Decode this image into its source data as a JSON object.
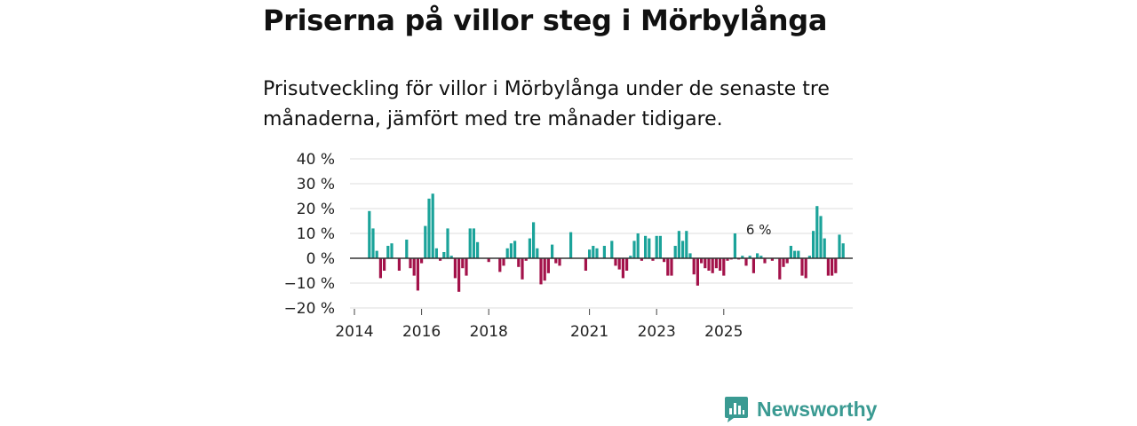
{
  "header": {
    "title": "Priserna på villor steg i Mörbylånga",
    "subtitle": "Prisutveckling för villor i Mörbylånga under de senaste tre månaderna, jämfört med tre månader tidigare."
  },
  "brand": {
    "name": "Newsworthy"
  },
  "colors": {
    "positive": "#1ba39a",
    "negative": "#a3124a",
    "brand": "#3a9a92"
  },
  "chart_data": {
    "type": "bar",
    "title": "Priserna på villor steg i Mörbylånga",
    "xlabel": "",
    "ylabel": "",
    "ylim": [
      -20,
      40
    ],
    "yticks": [
      -20,
      -10,
      0,
      10,
      20,
      30,
      40
    ],
    "ytick_labels": [
      "−20 %",
      "−10 %",
      "0 %",
      "10 %",
      "20 %",
      "30 %",
      "40 %"
    ],
    "xticks": [
      {
        "label": "2014",
        "month": 0
      },
      {
        "label": "2016",
        "month": 18
      },
      {
        "label": "2018",
        "month": 36
      },
      {
        "label": "2021",
        "month": 63
      },
      {
        "label": "2023",
        "month": 81
      },
      {
        "label": "2025",
        "month": 99
      }
    ],
    "x_unit": "months since January 2014",
    "annotation": {
      "text": "6 %",
      "month": 106
    },
    "bars": [
      {
        "month": 4,
        "value": 19
      },
      {
        "month": 5,
        "value": 12
      },
      {
        "month": 6,
        "value": 3
      },
      {
        "month": 7,
        "value": -8
      },
      {
        "month": 8,
        "value": -5
      },
      {
        "month": 9,
        "value": 5
      },
      {
        "month": 10,
        "value": 6
      },
      {
        "month": 11,
        "value": 0
      },
      {
        "month": 12,
        "value": -5
      },
      {
        "month": 14,
        "value": 7.5
      },
      {
        "month": 15,
        "value": -4
      },
      {
        "month": 16,
        "value": -7
      },
      {
        "month": 17,
        "value": -13
      },
      {
        "month": 18,
        "value": -2
      },
      {
        "month": 19,
        "value": 13
      },
      {
        "month": 20,
        "value": 24
      },
      {
        "month": 21,
        "value": 26
      },
      {
        "month": 22,
        "value": 4
      },
      {
        "month": 23,
        "value": -1
      },
      {
        "month": 24,
        "value": 2.5
      },
      {
        "month": 25,
        "value": 12
      },
      {
        "month": 26,
        "value": 1
      },
      {
        "month": 27,
        "value": -8
      },
      {
        "month": 28,
        "value": -13.5
      },
      {
        "month": 29,
        "value": -4
      },
      {
        "month": 30,
        "value": -7
      },
      {
        "month": 31,
        "value": 12
      },
      {
        "month": 32,
        "value": 12
      },
      {
        "month": 33,
        "value": 6.5
      },
      {
        "month": 36,
        "value": -1.5
      },
      {
        "month": 39,
        "value": -5.5
      },
      {
        "month": 40,
        "value": -3
      },
      {
        "month": 41,
        "value": 4
      },
      {
        "month": 42,
        "value": 6
      },
      {
        "month": 43,
        "value": 7
      },
      {
        "month": 44,
        "value": -3.5
      },
      {
        "month": 45,
        "value": -8.5
      },
      {
        "month": 46,
        "value": -1
      },
      {
        "month": 47,
        "value": 8
      },
      {
        "month": 48,
        "value": 14.5
      },
      {
        "month": 49,
        "value": 4
      },
      {
        "month": 50,
        "value": -10.5
      },
      {
        "month": 51,
        "value": -9
      },
      {
        "month": 52,
        "value": -6
      },
      {
        "month": 53,
        "value": 5.5
      },
      {
        "month": 54,
        "value": -2
      },
      {
        "month": 55,
        "value": -3
      },
      {
        "month": 58,
        "value": 10.5
      },
      {
        "month": 62,
        "value": -5
      },
      {
        "month": 63,
        "value": 3.5
      },
      {
        "month": 64,
        "value": 5
      },
      {
        "month": 65,
        "value": 4
      },
      {
        "month": 67,
        "value": 5
      },
      {
        "month": 69,
        "value": 7
      },
      {
        "month": 70,
        "value": -3
      },
      {
        "month": 71,
        "value": -4.5
      },
      {
        "month": 72,
        "value": -8
      },
      {
        "month": 73,
        "value": -5
      },
      {
        "month": 74,
        "value": 1
      },
      {
        "month": 75,
        "value": 7
      },
      {
        "month": 76,
        "value": 10
      },
      {
        "month": 77,
        "value": -1
      },
      {
        "month": 78,
        "value": 9
      },
      {
        "month": 79,
        "value": 8
      },
      {
        "month": 80,
        "value": -1
      },
      {
        "month": 81,
        "value": 9
      },
      {
        "month": 82,
        "value": 9
      },
      {
        "month": 83,
        "value": -1.5
      },
      {
        "month": 84,
        "value": -7
      },
      {
        "month": 85,
        "value": -7
      },
      {
        "month": 86,
        "value": 5
      },
      {
        "month": 87,
        "value": 11
      },
      {
        "month": 88,
        "value": 7
      },
      {
        "month": 89,
        "value": 11
      },
      {
        "month": 90,
        "value": 2
      },
      {
        "month": 91,
        "value": -6.5
      },
      {
        "month": 92,
        "value": -11
      },
      {
        "month": 93,
        "value": -2
      },
      {
        "month": 94,
        "value": -4
      },
      {
        "month": 95,
        "value": -5
      },
      {
        "month": 96,
        "value": -6
      },
      {
        "month": 97,
        "value": -4
      },
      {
        "month": 98,
        "value": -5
      },
      {
        "month": 99,
        "value": -7
      },
      {
        "month": 100,
        "value": -1
      },
      {
        "month": 101,
        "value": -0.5
      },
      {
        "month": 102,
        "value": 10
      },
      {
        "month": 103,
        "value": -0.5
      },
      {
        "month": 104,
        "value": 1
      },
      {
        "month": 105,
        "value": -3
      },
      {
        "month": 106,
        "value": 1
      },
      {
        "month": 107,
        "value": -6
      },
      {
        "month": 108,
        "value": 2
      },
      {
        "month": 109,
        "value": 1
      },
      {
        "month": 110,
        "value": -2
      },
      {
        "month": 112,
        "value": -1
      },
      {
        "month": 114,
        "value": -8.5
      },
      {
        "month": 115,
        "value": -3.5
      },
      {
        "month": 116,
        "value": -2
      },
      {
        "month": 117,
        "value": 5
      },
      {
        "month": 118,
        "value": 3
      },
      {
        "month": 119,
        "value": 3
      },
      {
        "month": 120,
        "value": -7
      },
      {
        "month": 121,
        "value": -8
      },
      {
        "month": 122,
        "value": 1
      },
      {
        "month": 123,
        "value": 11
      },
      {
        "month": 124,
        "value": 21
      },
      {
        "month": 125,
        "value": 17
      },
      {
        "month": 126,
        "value": 8
      },
      {
        "month": 127,
        "value": -7
      },
      {
        "month": 128,
        "value": -7
      },
      {
        "month": 129,
        "value": -6
      },
      {
        "month": 130,
        "value": 9.5
      },
      {
        "month": 131,
        "value": 6
      }
    ]
  }
}
